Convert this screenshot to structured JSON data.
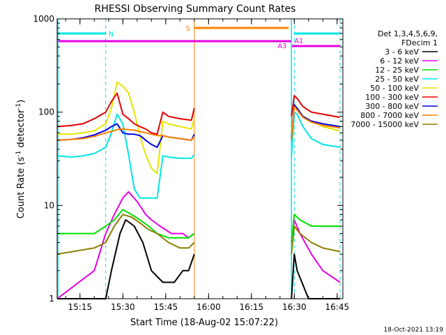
{
  "chart_data": {
    "type": "line",
    "title": "RHESSI Observing Summary Count Rates",
    "xlabel": "Start Time (18-Aug-02 15:07:22)",
    "ylabel_main": "Count Rate (s",
    "ylabel_sup1": "-1",
    "ylabel_mid": " detector",
    "ylabel_sup2": "-1",
    "ylabel_end": ")",
    "y_scale": "log",
    "xlim": [
      "15:07",
      "16:47"
    ],
    "ylim": [
      1,
      1000
    ],
    "x_ticks": [
      "15:15",
      "15:30",
      "15:45",
      "16:00",
      "16:15",
      "16:30",
      "16:45"
    ],
    "y_ticks": [
      "1",
      "10",
      "100",
      "1000"
    ],
    "legend_title": [
      "Det 1,3,4,5,6,9,",
      "FDecim 1"
    ],
    "legend_position": "right",
    "footer": "18-Oct-2021 13:19",
    "flag_labels": {
      "night": "N",
      "saa": "S",
      "attenuator1": "A1",
      "attenuator3": "A3"
    },
    "flags": [
      {
        "label": "N",
        "color": "#00e5e5",
        "segments": [
          [
            "15:07",
            "15:24"
          ],
          [
            "16:30",
            "16:46"
          ]
        ]
      },
      {
        "label": "S",
        "color": "#ff8000",
        "segments": [
          [
            "15:55",
            "16:28"
          ]
        ]
      },
      {
        "label": "A1/A3",
        "color": "#e500e5",
        "segments": [
          [
            "15:07",
            "16:29"
          ],
          [
            "16:29",
            "16:46"
          ]
        ]
      }
    ],
    "series": [
      {
        "name": "3 - 6 keV",
        "color": "#000000",
        "x": [
          "15:07",
          "15:20",
          "15:24",
          "15:26",
          "15:29",
          "15:31",
          "15:34",
          "15:37",
          "15:40",
          "15:44",
          "15:48",
          "15:51",
          "15:53",
          "15:55",
          "16:29",
          "16:30",
          "16:31",
          "16:35",
          "16:40",
          "16:46"
        ],
        "y": [
          1,
          1,
          1,
          2,
          5,
          7,
          6,
          4,
          2,
          1.5,
          1.5,
          2,
          2,
          3,
          1,
          3,
          2,
          1,
          1,
          1
        ]
      },
      {
        "name": "6 - 12 keV",
        "color": "#e500e5",
        "x": [
          "15:07",
          "15:20",
          "15:24",
          "15:27",
          "15:30",
          "15:32",
          "15:35",
          "15:38",
          "15:40",
          "15:43",
          "15:47",
          "15:51",
          "15:53",
          "15:55",
          "16:29",
          "16:30",
          "16:32",
          "16:36",
          "16:40",
          "16:46"
        ],
        "y": [
          1,
          2,
          5,
          8,
          12,
          14,
          11,
          8,
          7,
          6,
          5,
          5,
          4.5,
          5,
          4,
          7,
          5,
          3,
          2,
          1.5
        ]
      },
      {
        "name": "12 - 25 keV",
        "color": "#00e000",
        "x": [
          "15:07",
          "15:20",
          "15:24",
          "15:27",
          "15:30",
          "15:33",
          "15:36",
          "15:39",
          "15:42",
          "15:46",
          "15:50",
          "15:53",
          "15:55",
          "16:29",
          "16:30",
          "16:32",
          "16:36",
          "16:40",
          "16:46"
        ],
        "y": [
          5,
          5,
          6,
          7,
          9,
          8,
          7,
          6,
          5,
          4.5,
          4.5,
          4.5,
          5,
          4,
          8,
          7,
          6,
          6,
          6
        ]
      },
      {
        "name": "25 - 50 keV",
        "color": "#00e5e5",
        "x": [
          "15:07",
          "15:12",
          "15:16",
          "15:20",
          "15:24",
          "15:26",
          "15:28",
          "15:30",
          "15:32",
          "15:34",
          "15:36",
          "15:38",
          "15:40",
          "15:42",
          "15:44",
          "15:46",
          "15:50",
          "15:54",
          "15:55",
          "16:29",
          "16:30",
          "16:31",
          "16:33",
          "16:36",
          "16:40",
          "16:46"
        ],
        "y": [
          34,
          33,
          34,
          36,
          42,
          60,
          95,
          75,
          35,
          15,
          12,
          12,
          12,
          12,
          34,
          33,
          32,
          32,
          35,
          34,
          100,
          95,
          70,
          52,
          45,
          42
        ]
      },
      {
        "name": "50 - 100 keV",
        "color": "#e5e500",
        "x": [
          "15:07",
          "15:12",
          "15:16",
          "15:20",
          "15:24",
          "15:26",
          "15:28",
          "15:30",
          "15:32",
          "15:34",
          "15:36",
          "15:38",
          "15:40",
          "15:42",
          "15:44",
          "15:46",
          "15:50",
          "15:54",
          "15:55",
          "16:29",
          "16:30",
          "16:31",
          "16:33",
          "16:36",
          "16:40",
          "16:46"
        ],
        "y": [
          58,
          58,
          60,
          63,
          75,
          110,
          210,
          190,
          160,
          100,
          55,
          35,
          25,
          22,
          80,
          75,
          70,
          66,
          85,
          60,
          115,
          110,
          90,
          80,
          70,
          63
        ]
      },
      {
        "name": "100 - 300 keV",
        "color": "#e50000",
        "x": [
          "15:07",
          "15:12",
          "15:16",
          "15:20",
          "15:24",
          "15:26",
          "15:28",
          "15:30",
          "15:32",
          "15:34",
          "15:36",
          "15:38",
          "15:40",
          "15:42",
          "15:44",
          "15:46",
          "15:50",
          "15:54",
          "15:55",
          "16:29",
          "16:30",
          "16:31",
          "16:33",
          "16:36",
          "16:40",
          "16:46"
        ],
        "y": [
          70,
          72,
          75,
          85,
          100,
          130,
          160,
          95,
          85,
          75,
          70,
          66,
          60,
          58,
          100,
          90,
          85,
          82,
          110,
          90,
          150,
          140,
          115,
          100,
          95,
          88
        ]
      },
      {
        "name": "300 - 800 keV",
        "color": "#0000e5",
        "x": [
          "15:07",
          "15:12",
          "15:16",
          "15:20",
          "15:24",
          "15:26",
          "15:28",
          "15:30",
          "15:32",
          "15:34",
          "15:36",
          "15:38",
          "15:40",
          "15:42",
          "15:44",
          "15:46",
          "15:50",
          "15:54",
          "15:55",
          "16:29",
          "16:30",
          "16:31",
          "16:33",
          "16:36",
          "16:40",
          "16:46"
        ],
        "y": [
          50,
          51,
          53,
          57,
          64,
          70,
          75,
          60,
          58,
          58,
          56,
          50,
          45,
          42,
          56,
          54,
          52,
          50,
          58,
          52,
          120,
          110,
          90,
          80,
          75,
          70
        ]
      },
      {
        "name": "800 - 7000 keV",
        "color": "#ff8000",
        "x": [
          "15:07",
          "15:12",
          "15:16",
          "15:20",
          "15:24",
          "15:26",
          "15:28",
          "15:30",
          "15:32",
          "15:34",
          "15:36",
          "15:38",
          "15:40",
          "15:42",
          "15:44",
          "15:46",
          "15:50",
          "15:54",
          "15:55",
          "16:29",
          "16:30",
          "16:31",
          "16:33",
          "16:36",
          "16:40",
          "16:46"
        ],
        "y": [
          50,
          51,
          52,
          55,
          60,
          62,
          65,
          66,
          65,
          64,
          62,
          60,
          58,
          56,
          56,
          54,
          52,
          50,
          55,
          50,
          115,
          105,
          88,
          78,
          72,
          68
        ]
      },
      {
        "name": "7000 - 15000 keV",
        "color": "#8b7d00",
        "x": [
          "15:07",
          "15:20",
          "15:24",
          "15:27",
          "15:30",
          "15:33",
          "15:36",
          "15:39",
          "15:42",
          "15:46",
          "15:50",
          "15:53",
          "15:55",
          "16:29",
          "16:30",
          "16:32",
          "16:36",
          "16:40",
          "16:46"
        ],
        "y": [
          3,
          3.5,
          4,
          6,
          8,
          7.5,
          6.5,
          5.5,
          5,
          4,
          3.5,
          3.5,
          4,
          3,
          6,
          5,
          4,
          3.5,
          3.2
        ]
      }
    ]
  }
}
